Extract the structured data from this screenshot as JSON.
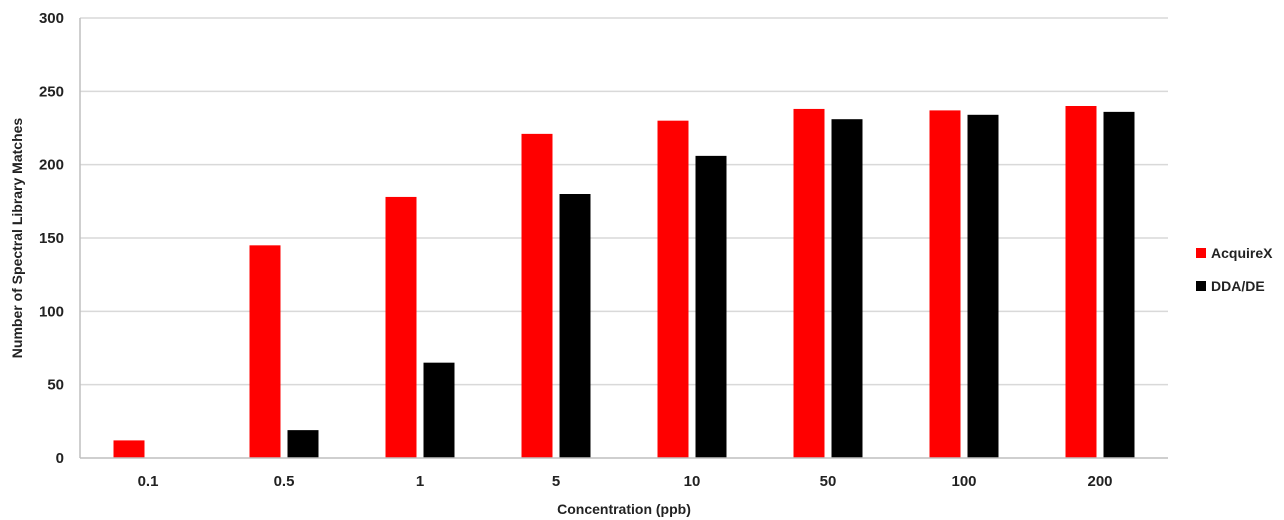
{
  "chart_data": {
    "type": "bar",
    "categories": [
      "0.1",
      "0.5",
      "1",
      "5",
      "10",
      "50",
      "100",
      "200"
    ],
    "series": [
      {
        "name": "AcquireX",
        "color": "#ff0000",
        "values": [
          12,
          145,
          178,
          221,
          230,
          238,
          237,
          240
        ]
      },
      {
        "name": "DDA/DE",
        "color": "#000000",
        "values": [
          0,
          19,
          65,
          180,
          206,
          231,
          234,
          236
        ]
      }
    ],
    "xlabel": "Concentration (ppb)",
    "ylabel": "Number of Spectral Library Matches",
    "ylim": [
      0,
      300
    ],
    "yticks": [
      0,
      50,
      100,
      150,
      200,
      250,
      300
    ],
    "grid": true,
    "legend_position": "right"
  }
}
